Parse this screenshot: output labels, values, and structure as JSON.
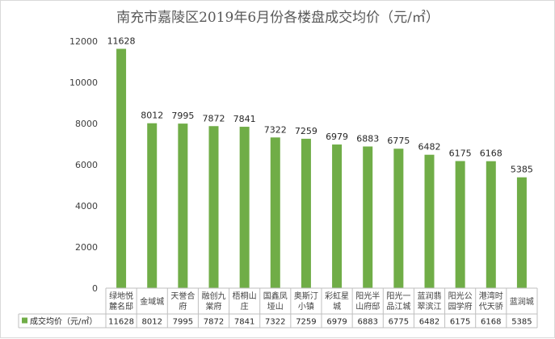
{
  "chart_data": {
    "type": "bar",
    "title": "南充市嘉陵区2019年6月份各楼盘成交均价（元/㎡）",
    "categories": [
      [
        "绿地悦",
        "麓名邸"
      ],
      [
        "金域城"
      ],
      [
        "天誉合",
        "府"
      ],
      [
        "融创九",
        "棠府"
      ],
      [
        "梧桐山",
        "庄"
      ],
      [
        "国鑫凤",
        "垭山"
      ],
      [
        "奥斯汀",
        "小镇"
      ],
      [
        "彩虹星",
        "城"
      ],
      [
        "阳光半",
        "山府邸"
      ],
      [
        "阳光一",
        "品江城"
      ],
      [
        "蓝润翡",
        "翠滨江"
      ],
      [
        "阳光公",
        "园学府"
      ],
      [
        "港湾时",
        "代天骄"
      ],
      [
        "蓝润城"
      ]
    ],
    "series": [
      {
        "name": "成交均价（元/㎡）",
        "color": "#70ad47",
        "values": [
          11628,
          8012,
          7995,
          7872,
          7841,
          7322,
          7259,
          6979,
          6883,
          6775,
          6482,
          6175,
          6168,
          5385
        ]
      }
    ],
    "yticks": [
      "0",
      "2000",
      "4000",
      "6000",
      "8000",
      "10000",
      "12000"
    ],
    "ylim": [
      0,
      12000
    ],
    "legend": "data-table-left",
    "grid": false
  }
}
